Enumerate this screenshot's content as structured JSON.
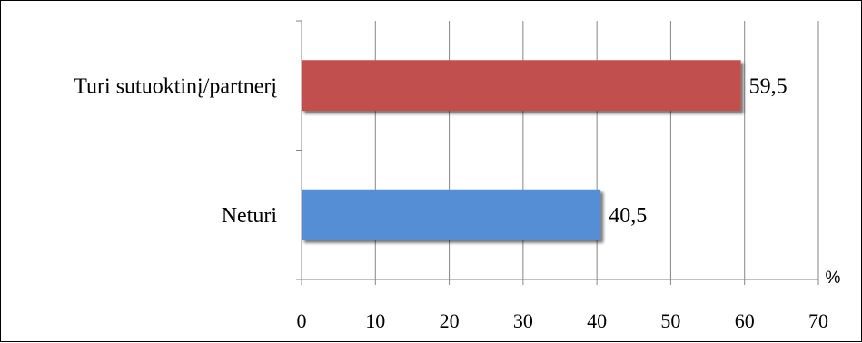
{
  "chart_data": {
    "type": "bar",
    "orientation": "horizontal",
    "categories": [
      "Turi sutuoktinį/partnerį",
      "Neturi"
    ],
    "values": [
      59.5,
      40.5
    ],
    "data_labels": [
      "59,5",
      "40,5"
    ],
    "bar_colors": [
      "#c0504d",
      "#558ed5"
    ],
    "xlim": [
      0,
      70
    ],
    "xticks": [
      0,
      10,
      20,
      30,
      40,
      50,
      60,
      70
    ],
    "xtick_labels": [
      "0",
      "10",
      "20",
      "30",
      "40",
      "50",
      "60",
      "70"
    ],
    "xlabel": "%",
    "title": "",
    "grid": "vertical",
    "legend": "none"
  }
}
